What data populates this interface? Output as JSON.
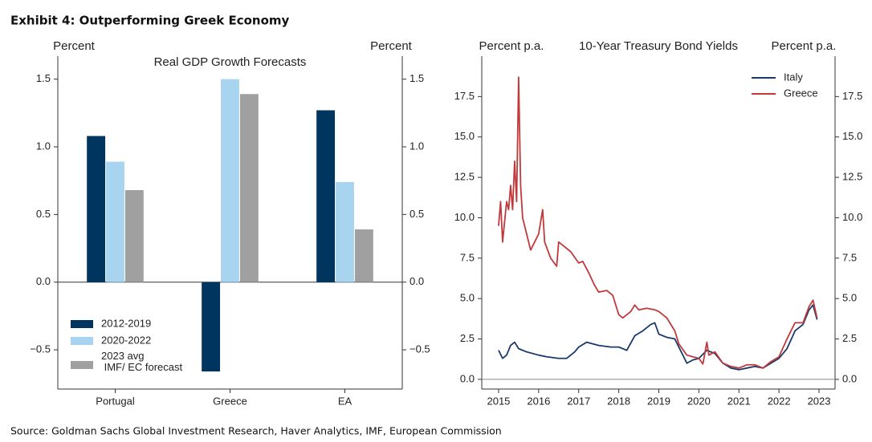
{
  "title": "Exhibit 4: Outperforming Greek Economy",
  "source": "Source: Goldman Sachs Global Investment Research, Haver Analytics, IMF, European Commission",
  "chart_data": [
    {
      "type": "bar",
      "title": "Real GDP Growth Forecasts",
      "ylabel": "Percent",
      "y2label": "Percent",
      "categories": [
        "Portugal",
        "Greece",
        "EA"
      ],
      "series": [
        {
          "name": "2012-2019",
          "color": "#003560",
          "values": [
            1.08,
            -0.66,
            1.27
          ]
        },
        {
          "name": "2020-2022",
          "color": "#a8d4f0",
          "values": [
            0.89,
            1.5,
            0.74
          ]
        },
        {
          "name": "2023 avg\n IMF/ EC forecast",
          "color": "#a0a0a0",
          "values": [
            0.68,
            1.39,
            0.39
          ]
        }
      ],
      "ylim": [
        -0.79,
        1.67
      ],
      "yticks": [
        {
          "value": -0.5,
          "label": "−0.5"
        },
        {
          "value": 0,
          "label": "0.0"
        },
        0.5,
        {
          "value": 1,
          "label": "1.0"
        },
        1.5
      ],
      "legend": "lower left"
    },
    {
      "type": "line",
      "title": "10-Year Treasury Bond Yields",
      "ylabel": "Percent p.a.",
      "y2label": "Percent p.a.",
      "series": [
        {
          "name": "Italy",
          "color": "#1a3a6b",
          "x": [
            2015.0,
            2015.1,
            2015.2,
            2015.3,
            2015.4,
            2015.5,
            2015.7,
            2016.0,
            2016.2,
            2016.5,
            2016.7,
            2016.9,
            2017.0,
            2017.2,
            2017.5,
            2017.8,
            2018.0,
            2018.2,
            2018.4,
            2018.6,
            2018.8,
            2018.9,
            2019.0,
            2019.2,
            2019.4,
            2019.6,
            2019.7,
            2019.85,
            2020.0,
            2020.2,
            2020.4,
            2020.6,
            2020.8,
            2021.0,
            2021.2,
            2021.4,
            2021.6,
            2021.8,
            2022.0,
            2022.2,
            2022.4,
            2022.6,
            2022.75,
            2022.85,
            2022.95
          ],
          "values": [
            1.8,
            1.3,
            1.5,
            2.1,
            2.3,
            1.9,
            1.7,
            1.5,
            1.4,
            1.3,
            1.3,
            1.7,
            2.0,
            2.3,
            2.1,
            2.0,
            2.0,
            1.8,
            2.7,
            3.0,
            3.4,
            3.5,
            2.8,
            2.6,
            2.5,
            1.5,
            1.0,
            1.2,
            1.3,
            1.8,
            1.6,
            1.0,
            0.7,
            0.6,
            0.7,
            0.8,
            0.7,
            1.0,
            1.3,
            1.9,
            3.0,
            3.4,
            4.3,
            4.6,
            3.7
          ]
        },
        {
          "name": "Greece",
          "color": "#c0393b",
          "x": [
            2015.0,
            2015.05,
            2015.1,
            2015.2,
            2015.25,
            2015.3,
            2015.35,
            2015.4,
            2015.45,
            2015.5,
            2015.55,
            2015.6,
            2015.7,
            2015.8,
            2015.9,
            2016.0,
            2016.1,
            2016.15,
            2016.3,
            2016.45,
            2016.5,
            2016.6,
            2016.8,
            2017.0,
            2017.1,
            2017.25,
            2017.4,
            2017.5,
            2017.7,
            2017.85,
            2018.0,
            2018.1,
            2018.3,
            2018.4,
            2018.5,
            2018.7,
            2018.9,
            2019.0,
            2019.2,
            2019.4,
            2019.5,
            2019.7,
            2019.85,
            2020.0,
            2020.1,
            2020.2,
            2020.25,
            2020.4,
            2020.6,
            2020.8,
            2021.0,
            2021.2,
            2021.4,
            2021.6,
            2021.8,
            2022.0,
            2022.2,
            2022.4,
            2022.6,
            2022.75,
            2022.85,
            2022.95
          ],
          "values": [
            9.5,
            11,
            8.5,
            11,
            10.5,
            12,
            10.5,
            13.5,
            11,
            18.7,
            12,
            10,
            9,
            8,
            8.5,
            9,
            10.5,
            8.5,
            7.5,
            7,
            8.5,
            8.3,
            7.9,
            7.2,
            7.3,
            6.6,
            5.8,
            5.4,
            5.5,
            5.2,
            4.0,
            3.8,
            4.2,
            4.6,
            4.3,
            4.4,
            4.3,
            4.2,
            3.8,
            3.0,
            2.2,
            1.5,
            1.4,
            1.3,
            0.95,
            2.3,
            1.5,
            1.7,
            1.0,
            0.8,
            0.7,
            0.9,
            0.9,
            0.7,
            1.1,
            1.4,
            2.5,
            3.5,
            3.5,
            4.5,
            4.9,
            3.8
          ]
        }
      ],
      "xlim": [
        2014.58,
        2023.4
      ],
      "xticks": [
        2015,
        2016,
        2017,
        2018,
        2019,
        2020,
        2021,
        2022,
        2023
      ],
      "ylim": [
        -0.6,
        20.0
      ],
      "yticks": [
        {
          "value": 0,
          "label": "0.0"
        },
        2.5,
        {
          "value": 5,
          "label": "5.0"
        },
        7.5,
        {
          "value": 10,
          "label": "10.0"
        },
        12.5,
        {
          "value": 15,
          "label": "15.0"
        },
        17.5
      ],
      "legend": "upper right"
    }
  ]
}
